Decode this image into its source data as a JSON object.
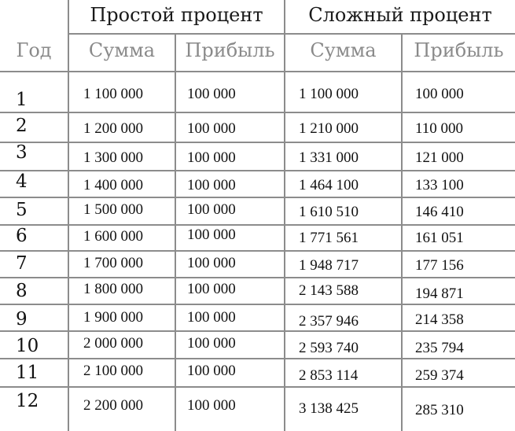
{
  "table": {
    "year_header": "Год",
    "groups": [
      {
        "title": "Простой процент",
        "columns": [
          "Сумма",
          "Прибыль"
        ]
      },
      {
        "title": "Сложный процент",
        "columns": [
          "Сумма",
          "Прибыль"
        ]
      }
    ],
    "rows": [
      {
        "year": "1",
        "simple_sum": "1 100 000",
        "simple_profit": "100 000",
        "compound_sum": "1 100 000",
        "compound_profit": "100 000"
      },
      {
        "year": "2",
        "simple_sum": "1 200 000",
        "simple_profit": "100 000",
        "compound_sum": "1 210 000",
        "compound_profit": "110 000"
      },
      {
        "year": "3",
        "simple_sum": "1 300 000",
        "simple_profit": "100 000",
        "compound_sum": "1 331 000",
        "compound_profit": "121 000"
      },
      {
        "year": "4",
        "simple_sum": "1 400 000",
        "simple_profit": "100 000",
        "compound_sum": "1 464 100",
        "compound_profit": "133 100"
      },
      {
        "year": "5",
        "simple_sum": "1 500 000",
        "simple_profit": "100 000",
        "compound_sum": "1 610 510",
        "compound_profit": "146 410"
      },
      {
        "year": "6",
        "simple_sum": "1 600 000",
        "simple_profit": "100 000",
        "compound_sum": "1 771 561",
        "compound_profit": "161 051"
      },
      {
        "year": "7",
        "simple_sum": "1 700 000",
        "simple_profit": "100 000",
        "compound_sum": "1 948 717",
        "compound_profit": "177 156"
      },
      {
        "year": "8",
        "simple_sum": "1 800 000",
        "simple_profit": "100 000",
        "compound_sum": "2 143 588",
        "compound_profit": "194 871"
      },
      {
        "year": "9",
        "simple_sum": "1 900 000",
        "simple_profit": "100 000",
        "compound_sum": "2 357 946",
        "compound_profit": "214 358"
      },
      {
        "year": "10",
        "simple_sum": "2 000 000",
        "simple_profit": "100 000",
        "compound_sum": "2 593 740",
        "compound_profit": "235 794"
      },
      {
        "year": "11",
        "simple_sum": "2 100 000",
        "simple_profit": "100 000",
        "compound_sum": "2 853 114",
        "compound_profit": "259 374"
      },
      {
        "year": "12",
        "simple_sum": "2 200 000",
        "simple_profit": "100 000",
        "compound_sum": "3 138 425",
        "compound_profit": "285 310"
      }
    ]
  },
  "colors": {
    "grid": "#8c8c8c",
    "header_sub": "#8a8a8a",
    "text": "#111111"
  }
}
